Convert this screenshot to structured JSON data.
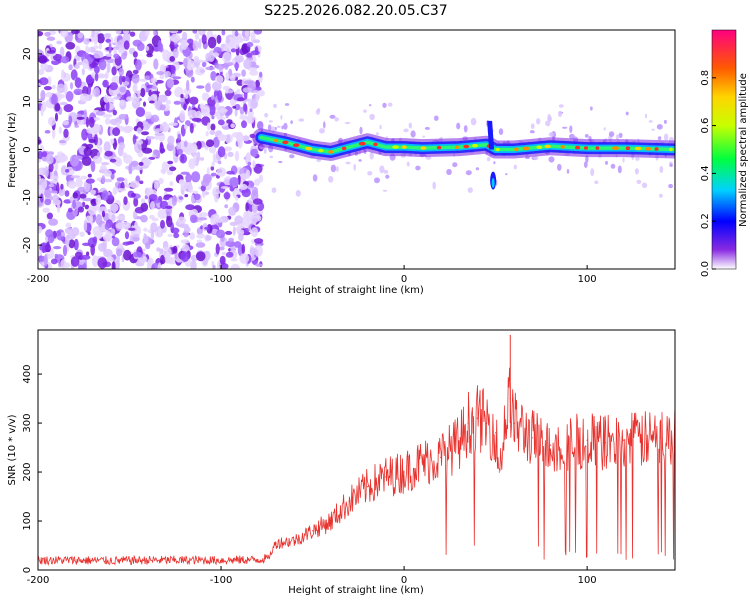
{
  "title": "S225.2026.082.20.05.C37",
  "spectrogram": {
    "type": "heatmap",
    "xlabel": "Height of straight line (km)",
    "ylabel": "Frequency (Hz)",
    "xlim": [
      -200,
      148
    ],
    "ylim": [
      -25,
      25
    ],
    "xticks": [
      -200,
      -100,
      0,
      100
    ],
    "yticks": [
      -20,
      -10,
      0,
      10,
      20
    ],
    "noise_region_end_km": -78,
    "signal_trace": [
      {
        "x": -78,
        "f": 2.5
      },
      {
        "x": -65,
        "f": 1.5
      },
      {
        "x": -50,
        "f": 0.0
      },
      {
        "x": -40,
        "f": -0.5
      },
      {
        "x": -20,
        "f": 1.5
      },
      {
        "x": -10,
        "f": 0.5
      },
      {
        "x": 0,
        "f": 0.5
      },
      {
        "x": 10,
        "f": 0.3
      },
      {
        "x": 30,
        "f": 0.5
      },
      {
        "x": 45,
        "f": 1.0
      },
      {
        "x": 50,
        "f": 0.0
      },
      {
        "x": 60,
        "f": 0.0
      },
      {
        "x": 80,
        "f": 0.7
      },
      {
        "x": 100,
        "f": 0.3
      },
      {
        "x": 120,
        "f": 0.3
      },
      {
        "x": 148,
        "f": 0.0
      }
    ],
    "disturbance_km": 47,
    "colorbar": {
      "label": "Normalized spectral amplitude",
      "range": [
        0.0,
        1.0
      ],
      "ticks": [
        "0.0",
        "0.2",
        "0.4",
        "0.6",
        "0.8"
      ],
      "tick_values": [
        0.0,
        0.2,
        0.4,
        0.6,
        0.8
      ]
    }
  },
  "chart_data": {
    "type": "line",
    "title": "S225.2026.082.20.05.C37",
    "xlabel": "Height of straight line (km)",
    "ylabel": "SNR (10 * v/v)",
    "xlim": [
      -200,
      148
    ],
    "ylim": [
      0,
      490
    ],
    "xticks": [
      -200,
      -100,
      0,
      100
    ],
    "yticks": [
      0,
      100,
      200,
      300,
      400
    ],
    "series": [
      {
        "name": "SNR",
        "color": "#e8322e",
        "x": [
          -200,
          -180,
          -160,
          -140,
          -120,
          -100,
          -80,
          -74,
          -70,
          -60,
          -50,
          -40,
          -30,
          -20,
          -10,
          0,
          10,
          20,
          30,
          35,
          40,
          45,
          50,
          52,
          55,
          58,
          60,
          70,
          80,
          90,
          100,
          110,
          120,
          130,
          140,
          148
        ],
        "y": [
          20,
          20,
          19,
          20,
          20,
          20,
          21,
          25,
          55,
          60,
          80,
          100,
          140,
          170,
          190,
          200,
          220,
          230,
          260,
          300,
          310,
          300,
          280,
          200,
          300,
          350,
          300,
          270,
          255,
          260,
          265,
          260,
          265,
          265,
          270,
          270
        ]
      }
    ]
  }
}
